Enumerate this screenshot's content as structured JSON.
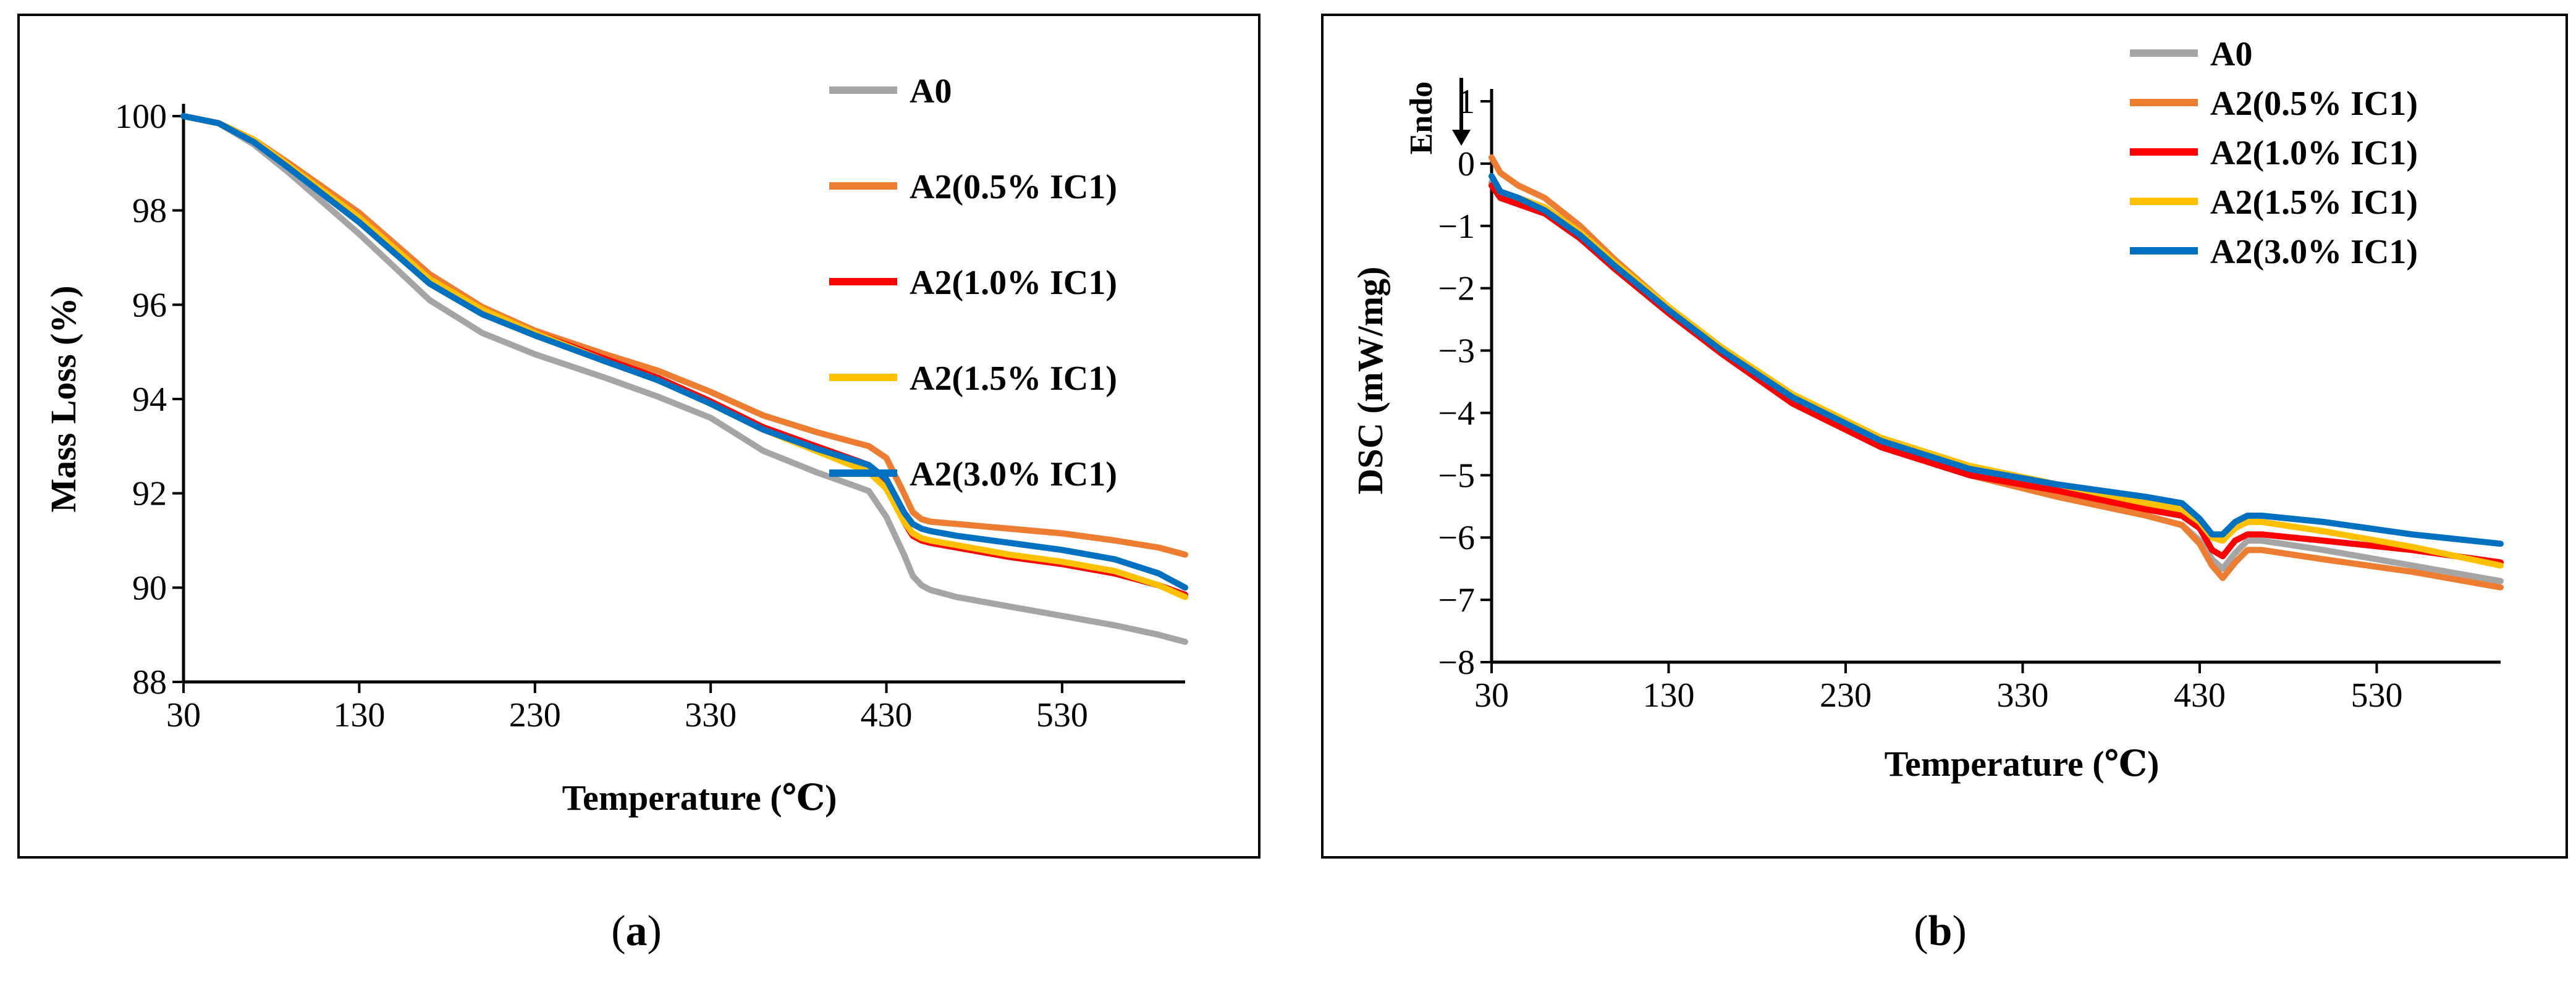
{
  "figure": {
    "captions": [
      {
        "open": "(",
        "letter": "a",
        "close": ")"
      },
      {
        "open": "(",
        "letter": "b",
        "close": ")"
      }
    ]
  },
  "chart_data": [
    {
      "type": "line",
      "panel": "a",
      "title": "",
      "xlabel": "Temperature (℃)",
      "ylabel": "Mass Loss (%)",
      "xlim": [
        30,
        600
      ],
      "ylim": [
        88,
        100
      ],
      "xticks": [
        "30",
        "130",
        "230",
        "330",
        "430",
        "530"
      ],
      "yticks": [
        "88",
        "90",
        "92",
        "94",
        "96",
        "98",
        "100"
      ],
      "grid": false,
      "legend_position": "top-right",
      "series": [
        {
          "name": "A0",
          "color": "#a5a5a5",
          "x": [
            30,
            50,
            70,
            90,
            130,
            170,
            200,
            230,
            270,
            300,
            330,
            360,
            390,
            420,
            430,
            440,
            445,
            450,
            455,
            470,
            500,
            530,
            560,
            585,
            600
          ],
          "y": [
            100,
            99.85,
            99.4,
            98.8,
            97.5,
            96.1,
            95.4,
            94.95,
            94.45,
            94.05,
            93.6,
            92.9,
            92.45,
            92.05,
            91.5,
            90.7,
            90.25,
            90.05,
            89.95,
            89.8,
            89.6,
            89.4,
            89.2,
            89.0,
            88.85
          ]
        },
        {
          "name": "A2(0.5% IC1)",
          "color": "#ed7d31",
          "x": [
            30,
            50,
            70,
            90,
            130,
            170,
            200,
            230,
            270,
            300,
            330,
            360,
            390,
            420,
            430,
            440,
            445,
            450,
            455,
            470,
            500,
            530,
            560,
            585,
            600
          ],
          "y": [
            100,
            99.85,
            99.5,
            99.0,
            97.95,
            96.65,
            95.95,
            95.45,
            94.95,
            94.6,
            94.15,
            93.65,
            93.3,
            93.0,
            92.75,
            92.0,
            91.6,
            91.45,
            91.4,
            91.35,
            91.25,
            91.15,
            91.0,
            90.85,
            90.7
          ]
        },
        {
          "name": "A2(1.0% IC1)",
          "color": "#ff0000",
          "x": [
            30,
            50,
            70,
            90,
            130,
            170,
            200,
            230,
            270,
            300,
            330,
            360,
            390,
            420,
            430,
            440,
            445,
            450,
            455,
            470,
            500,
            530,
            560,
            585,
            600
          ],
          "y": [
            100,
            99.85,
            99.5,
            98.95,
            97.85,
            96.55,
            95.9,
            95.4,
            94.85,
            94.45,
            93.95,
            93.4,
            93.0,
            92.6,
            92.2,
            91.4,
            91.1,
            91.0,
            90.95,
            90.85,
            90.65,
            90.5,
            90.3,
            90.05,
            89.85
          ]
        },
        {
          "name": "A2(1.5% IC1)",
          "color": "#ffc000",
          "x": [
            30,
            50,
            70,
            90,
            130,
            170,
            200,
            230,
            270,
            300,
            330,
            360,
            390,
            420,
            430,
            440,
            445,
            450,
            455,
            470,
            500,
            530,
            560,
            585,
            600
          ],
          "y": [
            100,
            99.85,
            99.5,
            98.95,
            97.85,
            96.55,
            95.9,
            95.4,
            94.8,
            94.4,
            93.9,
            93.35,
            92.9,
            92.45,
            92.1,
            91.4,
            91.15,
            91.05,
            91.0,
            90.9,
            90.7,
            90.55,
            90.35,
            90.05,
            89.8
          ]
        },
        {
          "name": "A2(3.0% IC1)",
          "color": "#0070c0",
          "x": [
            30,
            50,
            70,
            90,
            130,
            170,
            200,
            230,
            270,
            300,
            330,
            360,
            390,
            420,
            430,
            440,
            445,
            450,
            455,
            470,
            500,
            530,
            560,
            585,
            600
          ],
          "y": [
            100,
            99.85,
            99.45,
            98.9,
            97.75,
            96.45,
            95.8,
            95.35,
            94.8,
            94.4,
            93.9,
            93.35,
            92.95,
            92.6,
            92.3,
            91.6,
            91.35,
            91.25,
            91.2,
            91.1,
            90.95,
            90.8,
            90.6,
            90.3,
            90.0
          ]
        }
      ]
    },
    {
      "type": "line",
      "panel": "b",
      "title": "",
      "xlabel": "Temperature (℃)",
      "ylabel": "DSC (mW/mg)",
      "annotation": "Endo",
      "xlim": [
        30,
        600
      ],
      "ylim": [
        -8,
        1
      ],
      "xticks": [
        "30",
        "130",
        "230",
        "330",
        "430",
        "530"
      ],
      "yticks": [
        "−8",
        "−7",
        "−6",
        "−5",
        "−4",
        "−3",
        "−2",
        "−1",
        "0",
        "1"
      ],
      "grid": false,
      "legend_position": "top-right",
      "series": [
        {
          "name": "A0",
          "color": "#a5a5a5",
          "x": [
            30,
            35,
            45,
            60,
            80,
            100,
            130,
            160,
            200,
            250,
            300,
            350,
            400,
            420,
            430,
            437,
            443,
            450,
            457,
            465,
            500,
            550,
            600
          ],
          "y": [
            -0.3,
            -0.45,
            -0.55,
            -0.7,
            -1.15,
            -1.65,
            -2.35,
            -3.0,
            -3.75,
            -4.45,
            -4.95,
            -5.3,
            -5.65,
            -5.8,
            -6.05,
            -6.35,
            -6.5,
            -6.25,
            -6.05,
            -6.05,
            -6.2,
            -6.45,
            -6.7
          ]
        },
        {
          "name": "A2(0.5% IC1)",
          "color": "#ed7d31",
          "x": [
            30,
            35,
            45,
            60,
            80,
            100,
            130,
            160,
            200,
            250,
            300,
            350,
            400,
            420,
            430,
            437,
            443,
            450,
            457,
            465,
            500,
            550,
            600
          ],
          "y": [
            0.1,
            -0.15,
            -0.35,
            -0.55,
            -1.0,
            -1.55,
            -2.3,
            -3.0,
            -3.8,
            -4.5,
            -5.0,
            -5.35,
            -5.65,
            -5.8,
            -6.1,
            -6.45,
            -6.65,
            -6.4,
            -6.2,
            -6.2,
            -6.35,
            -6.55,
            -6.8
          ]
        },
        {
          "name": "A2(1.0% IC1)",
          "color": "#ff0000",
          "x": [
            30,
            35,
            45,
            60,
            80,
            100,
            130,
            160,
            200,
            250,
            300,
            350,
            400,
            420,
            430,
            437,
            443,
            450,
            457,
            465,
            500,
            550,
            600
          ],
          "y": [
            -0.35,
            -0.55,
            -0.65,
            -0.8,
            -1.2,
            -1.7,
            -2.4,
            -3.05,
            -3.85,
            -4.55,
            -5.0,
            -5.25,
            -5.55,
            -5.65,
            -5.85,
            -6.2,
            -6.3,
            -6.05,
            -5.95,
            -5.95,
            -6.05,
            -6.2,
            -6.4
          ]
        },
        {
          "name": "A2(1.5% IC1)",
          "color": "#ffc000",
          "x": [
            30,
            35,
            45,
            60,
            80,
            100,
            130,
            160,
            200,
            250,
            300,
            350,
            400,
            420,
            430,
            437,
            443,
            450,
            457,
            465,
            500,
            550,
            600
          ],
          "y": [
            -0.2,
            -0.45,
            -0.55,
            -0.7,
            -1.1,
            -1.6,
            -2.3,
            -2.95,
            -3.7,
            -4.4,
            -4.85,
            -5.15,
            -5.45,
            -5.55,
            -5.75,
            -6.0,
            -6.05,
            -5.85,
            -5.75,
            -5.75,
            -5.9,
            -6.15,
            -6.45
          ]
        },
        {
          "name": "A2(3.0% IC1)",
          "color": "#0070c0",
          "x": [
            30,
            35,
            45,
            60,
            80,
            100,
            130,
            160,
            200,
            250,
            300,
            350,
            400,
            420,
            430,
            437,
            443,
            450,
            457,
            465,
            500,
            550,
            600
          ],
          "y": [
            -0.2,
            -0.45,
            -0.55,
            -0.75,
            -1.15,
            -1.65,
            -2.35,
            -3.0,
            -3.75,
            -4.45,
            -4.9,
            -5.15,
            -5.35,
            -5.45,
            -5.7,
            -5.95,
            -5.95,
            -5.75,
            -5.65,
            -5.65,
            -5.75,
            -5.95,
            -6.1
          ]
        }
      ]
    }
  ]
}
